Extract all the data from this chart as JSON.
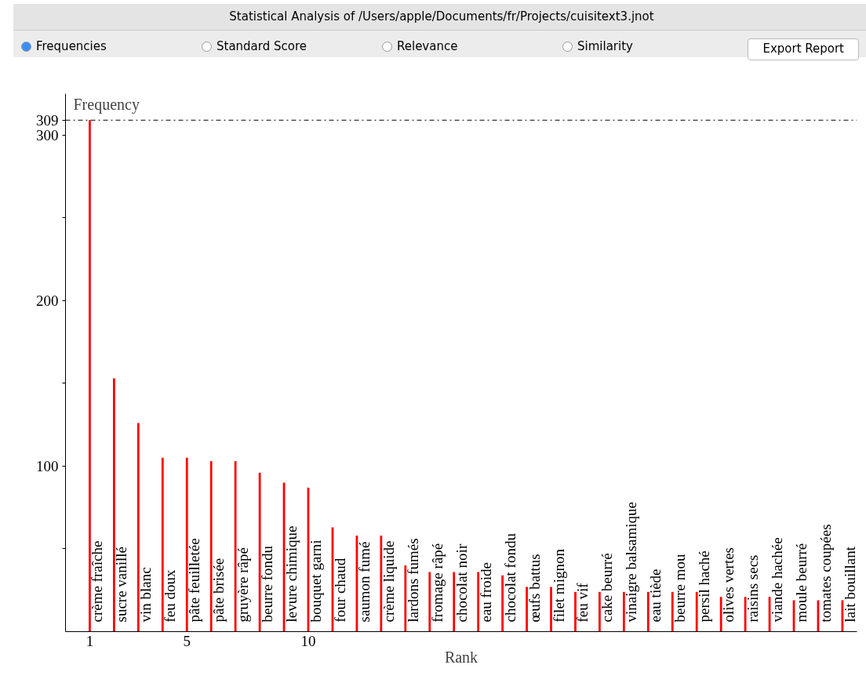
{
  "chart_data": {
    "type": "bar",
    "title": "Statistical Analysis of /Users/apple/Documents/fr/Projects/cuisitext3.jnot",
    "ylabel": "Frequency",
    "xlabel": "Rank",
    "x": [
      1,
      2,
      3,
      4,
      5,
      6,
      7,
      8,
      9,
      10,
      11,
      12,
      13,
      14,
      15,
      16,
      17,
      18,
      19,
      20,
      21,
      22,
      23,
      24,
      25,
      26,
      27,
      28,
      29,
      30,
      31,
      32
    ],
    "series": [
      {
        "color": "#ff0000",
        "values": [
          309,
          153,
          126,
          105,
          105,
          103,
          103,
          96,
          90,
          87,
          63,
          58,
          58,
          40,
          36,
          36,
          36,
          34,
          27,
          27,
          24,
          24,
          24,
          24,
          24,
          24,
          21,
          21,
          21,
          19,
          19,
          19
        ]
      }
    ],
    "xlim": [
      0,
      32.6
    ],
    "xticks": [
      1,
      5,
      10
    ],
    "ylim": [
      0,
      325
    ],
    "yticks": [
      {
        "value": 50,
        "label": null
      },
      100,
      {
        "value": 150,
        "label": null
      },
      200,
      {
        "value": 250,
        "label": null
      },
      300,
      309
    ],
    "ref_lines": [
      {
        "axis": "y",
        "value": 309,
        "color": "#000000",
        "line_style": "dashdot"
      }
    ],
    "grid": false,
    "annotations": [
      "Frequencies",
      "Standard Score",
      "Relevance",
      "Similarity",
      "Export Report",
      {
        "text": "crème fraîche",
        "x": 1,
        "y": 0
      },
      {
        "text": "sucre vanillé",
        "x": 2,
        "y": 0
      },
      {
        "text": "vin blanc",
        "x": 3,
        "y": 0
      },
      {
        "text": "feu doux",
        "x": 4,
        "y": 0
      },
      {
        "text": "pâte feuilletée",
        "x": 5,
        "y": 0
      },
      {
        "text": "pâte brisée",
        "x": 6,
        "y": 0
      },
      {
        "text": "gruyère râpé",
        "x": 7,
        "y": 0
      },
      {
        "text": "beurre fondu",
        "x": 8,
        "y": 0
      },
      {
        "text": "levure chimique",
        "x": 9,
        "y": 0
      },
      {
        "text": "bouquet garni",
        "x": 10,
        "y": 0
      },
      {
        "text": "four chaud",
        "x": 11,
        "y": 0
      },
      {
        "text": "saumon fumé",
        "x": 12,
        "y": 0
      },
      {
        "text": "crème liquide",
        "x": 13,
        "y": 0
      },
      {
        "text": "lardons fumés",
        "x": 14,
        "y": 0
      },
      {
        "text": "fromage râpé",
        "x": 15,
        "y": 0
      },
      {
        "text": "chocolat noir",
        "x": 16,
        "y": 0
      },
      {
        "text": "eau froide",
        "x": 17,
        "y": 0
      },
      {
        "text": "chocolat fondu",
        "x": 18,
        "y": 0
      },
      {
        "text": "œufs battus",
        "x": 19,
        "y": 0
      },
      {
        "text": "filet mignon",
        "x": 20,
        "y": 0
      },
      {
        "text": "feu vif",
        "x": 21,
        "y": 0
      },
      {
        "text": "cake beurré",
        "x": 22,
        "y": 0
      },
      {
        "text": "vinaigre balsamique",
        "x": 23,
        "y": 0
      },
      {
        "text": "eau tiède",
        "x": 24,
        "y": 0
      },
      {
        "text": "beurre mou",
        "x": 25,
        "y": 0
      },
      {
        "text": "persil haché",
        "x": 26,
        "y": 0
      },
      {
        "text": "olives vertes",
        "x": 27,
        "y": 0
      },
      {
        "text": "raisins secs",
        "x": 28,
        "y": 0
      },
      {
        "text": "viande hachée",
        "x": 29,
        "y": 0
      },
      {
        "text": "moule beurré",
        "x": 30,
        "y": 0
      },
      {
        "text": "tomates coupées",
        "x": 31,
        "y": 0
      },
      {
        "text": "lait bouillant",
        "x": 32,
        "y": 0
      }
    ]
  }
}
